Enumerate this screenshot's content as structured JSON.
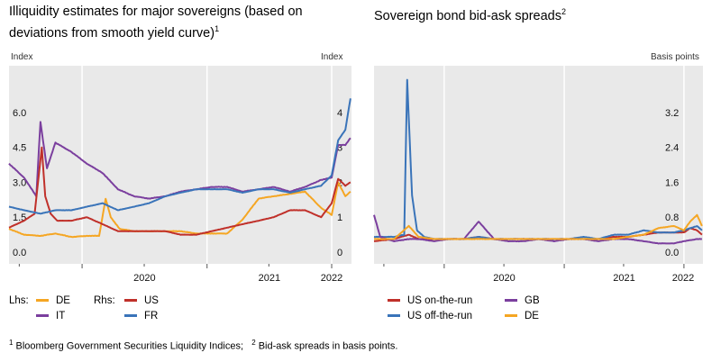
{
  "chart_data": [
    {
      "type": "line",
      "title": "Illiquidity estimates for major sovereigns (based on deviations from smooth yield curve)",
      "title_footnote": "1",
      "left_unit": "Index",
      "right_unit": "Index",
      "ylim_left": [
        0,
        7.5
      ],
      "ylim_right": [
        0,
        5
      ],
      "yticks_left": [
        "0.0",
        "1.5",
        "3.0",
        "4.5",
        "6.0"
      ],
      "yticks_right": [
        "0",
        "1",
        "2",
        "3",
        "4"
      ],
      "xlim": [
        "2019-06-01",
        "2022-02-28"
      ],
      "xticks": [
        {
          "label": "2020",
          "at": "2020-01-01"
        },
        {
          "label": "2021",
          "at": "2021-01-01"
        },
        {
          "label": "2022",
          "at": "2022-01-01"
        }
      ],
      "legend_labels": {
        "lhs": "Lhs:",
        "rhs": "Rhs:"
      },
      "series": [
        {
          "name": "DE",
          "axis": "left",
          "color": "#f5a623",
          "x": [
            "2019-06-01",
            "2019-07-15",
            "2019-09-01",
            "2019-10-15",
            "2019-12-01",
            "2020-01-15",
            "2020-02-20",
            "2020-03-10",
            "2020-03-25",
            "2020-04-20",
            "2020-06-01",
            "2020-07-15",
            "2020-09-01",
            "2020-10-15",
            "2020-12-01",
            "2021-01-15",
            "2021-03-01",
            "2021-04-15",
            "2021-06-01",
            "2021-07-15",
            "2021-09-01",
            "2021-10-15",
            "2021-12-01",
            "2022-01-01",
            "2022-01-20",
            "2022-02-10",
            "2022-02-25"
          ],
          "y": [
            1.0,
            0.75,
            0.7,
            0.8,
            0.65,
            0.7,
            0.7,
            2.3,
            1.5,
            1.0,
            0.9,
            0.9,
            0.9,
            0.9,
            0.8,
            0.8,
            0.8,
            1.4,
            2.3,
            2.4,
            2.5,
            2.6,
            1.9,
            1.6,
            3.0,
            2.4,
            2.6
          ]
        },
        {
          "name": "IT",
          "axis": "left",
          "color": "#7b3f9e",
          "x": [
            "2019-06-01",
            "2019-07-15",
            "2019-08-20",
            "2019-09-01",
            "2019-09-20",
            "2019-10-15",
            "2019-12-01",
            "2020-01-15",
            "2020-03-01",
            "2020-04-15",
            "2020-06-01",
            "2020-07-15",
            "2020-09-01",
            "2020-10-15",
            "2020-12-01",
            "2021-01-15",
            "2021-03-01",
            "2021-04-15",
            "2021-06-01",
            "2021-07-15",
            "2021-09-01",
            "2021-10-15",
            "2021-12-01",
            "2022-01-01",
            "2022-01-20",
            "2022-02-10",
            "2022-02-25"
          ],
          "y": [
            3.8,
            3.2,
            2.4,
            5.6,
            3.6,
            4.7,
            4.3,
            3.8,
            3.4,
            2.7,
            2.4,
            2.3,
            2.4,
            2.6,
            2.7,
            2.8,
            2.8,
            2.6,
            2.7,
            2.8,
            2.6,
            2.8,
            3.1,
            3.2,
            4.6,
            4.6,
            4.9
          ]
        },
        {
          "name": "US",
          "axis": "right",
          "color": "#c0302a",
          "x": [
            "2019-06-01",
            "2019-07-15",
            "2019-08-15",
            "2019-09-05",
            "2019-09-15",
            "2019-10-01",
            "2019-10-20",
            "2019-12-01",
            "2020-01-15",
            "2020-03-01",
            "2020-04-15",
            "2020-06-01",
            "2020-07-15",
            "2020-09-01",
            "2020-10-15",
            "2020-12-01",
            "2021-01-15",
            "2021-03-01",
            "2021-04-15",
            "2021-06-01",
            "2021-07-15",
            "2021-09-01",
            "2021-10-15",
            "2021-12-01",
            "2022-01-01",
            "2022-01-20",
            "2022-02-10",
            "2022-02-25"
          ],
          "y": [
            0.7,
            0.9,
            1.1,
            3.0,
            1.6,
            1.1,
            0.9,
            0.9,
            1.0,
            0.8,
            0.6,
            0.6,
            0.6,
            0.6,
            0.5,
            0.5,
            0.6,
            0.7,
            0.8,
            0.9,
            1.0,
            1.2,
            1.2,
            1.0,
            1.4,
            2.1,
            1.9,
            2.0
          ]
        },
        {
          "name": "FR",
          "axis": "right",
          "color": "#3a74b9",
          "x": [
            "2019-06-01",
            "2019-07-15",
            "2019-09-01",
            "2019-10-15",
            "2019-12-01",
            "2020-01-15",
            "2020-03-01",
            "2020-04-15",
            "2020-06-01",
            "2020-07-15",
            "2020-09-01",
            "2020-10-15",
            "2020-12-01",
            "2021-01-15",
            "2021-03-01",
            "2021-04-15",
            "2021-06-01",
            "2021-07-15",
            "2021-09-01",
            "2021-10-15",
            "2021-12-01",
            "2022-01-01",
            "2022-01-20",
            "2022-02-10",
            "2022-02-25"
          ],
          "y": [
            1.3,
            1.2,
            1.1,
            1.2,
            1.2,
            1.3,
            1.4,
            1.2,
            1.3,
            1.4,
            1.6,
            1.7,
            1.8,
            1.8,
            1.8,
            1.7,
            1.8,
            1.8,
            1.7,
            1.8,
            1.9,
            2.2,
            3.2,
            3.5,
            4.4
          ]
        }
      ]
    },
    {
      "type": "line",
      "title": "Sovereign bond bid-ask spreads",
      "title_footnote": "2",
      "right_unit": "Basis points",
      "ylim_right": [
        0,
        4.0
      ],
      "yticks_right": [
        "0.0",
        "0.8",
        "1.6",
        "2.4",
        "3.2"
      ],
      "xlim": [
        "2019-06-01",
        "2022-02-28"
      ],
      "xticks": [
        {
          "label": "2020",
          "at": "2020-01-01"
        },
        {
          "label": "2021",
          "at": "2021-01-01"
        },
        {
          "label": "2022",
          "at": "2022-01-01"
        }
      ],
      "series": [
        {
          "name": "US on-the-run",
          "axis": "right",
          "color": "#c0302a",
          "x": [
            "2019-06-01",
            "2019-08-01",
            "2019-09-15",
            "2019-10-15",
            "2019-12-01",
            "2020-01-15",
            "2020-03-01",
            "2020-04-15",
            "2020-06-01",
            "2020-07-15",
            "2020-09-01",
            "2020-10-15",
            "2020-12-01",
            "2021-01-15",
            "2021-03-01",
            "2021-04-15",
            "2021-06-01",
            "2021-07-15",
            "2021-09-01",
            "2021-10-15",
            "2021-12-01",
            "2022-01-01",
            "2022-01-20",
            "2022-02-10",
            "2022-02-25"
          ],
          "y": [
            0.25,
            0.3,
            0.4,
            0.3,
            0.3,
            0.3,
            0.3,
            0.35,
            0.3,
            0.3,
            0.3,
            0.3,
            0.3,
            0.3,
            0.3,
            0.3,
            0.35,
            0.35,
            0.4,
            0.45,
            0.45,
            0.45,
            0.55,
            0.5,
            0.4
          ]
        },
        {
          "name": "US off-the-run",
          "axis": "right",
          "color": "#3a74b9",
          "x": [
            "2019-06-01",
            "2019-08-01",
            "2019-09-01",
            "2019-09-10",
            "2019-09-25",
            "2019-10-10",
            "2019-11-01",
            "2019-12-01",
            "2020-01-15",
            "2020-03-01",
            "2020-04-15",
            "2020-06-01",
            "2020-07-15",
            "2020-09-01",
            "2020-10-15",
            "2020-12-01",
            "2021-01-15",
            "2021-03-01",
            "2021-04-15",
            "2021-06-01",
            "2021-07-15",
            "2021-09-01",
            "2021-10-15",
            "2021-12-01",
            "2022-01-01",
            "2022-02-10",
            "2022-02-25"
          ],
          "y": [
            0.35,
            0.35,
            0.4,
            3.95,
            1.3,
            0.5,
            0.35,
            0.3,
            0.3,
            0.3,
            0.35,
            0.3,
            0.3,
            0.3,
            0.3,
            0.3,
            0.3,
            0.35,
            0.3,
            0.4,
            0.4,
            0.5,
            0.45,
            0.45,
            0.5,
            0.6,
            0.5
          ]
        },
        {
          "name": "GB",
          "axis": "right",
          "color": "#7b3f9e",
          "x": [
            "2019-06-01",
            "2019-06-20",
            "2019-08-01",
            "2019-09-15",
            "2019-10-15",
            "2019-12-01",
            "2020-01-15",
            "2020-03-01",
            "2020-04-15",
            "2020-06-01",
            "2020-07-15",
            "2020-09-01",
            "2020-10-15",
            "2020-12-01",
            "2021-01-15",
            "2021-03-01",
            "2021-04-15",
            "2021-06-01",
            "2021-07-15",
            "2021-09-01",
            "2021-10-15",
            "2021-12-01",
            "2022-01-01",
            "2022-02-10",
            "2022-02-25"
          ],
          "y": [
            0.85,
            0.35,
            0.25,
            0.3,
            0.3,
            0.25,
            0.3,
            0.3,
            0.7,
            0.3,
            0.25,
            0.25,
            0.3,
            0.25,
            0.3,
            0.3,
            0.25,
            0.3,
            0.3,
            0.25,
            0.2,
            0.2,
            0.25,
            0.3,
            0.3
          ]
        },
        {
          "name": "DE",
          "axis": "right",
          "color": "#f5a623",
          "x": [
            "2019-06-01",
            "2019-08-01",
            "2019-09-15",
            "2019-10-15",
            "2019-12-01",
            "2020-01-15",
            "2020-03-01",
            "2020-04-15",
            "2020-06-01",
            "2020-07-15",
            "2020-09-01",
            "2020-10-15",
            "2020-12-01",
            "2021-01-15",
            "2021-03-01",
            "2021-04-15",
            "2021-06-01",
            "2021-07-15",
            "2021-09-01",
            "2021-10-15",
            "2021-12-01",
            "2022-01-01",
            "2022-01-20",
            "2022-02-10",
            "2022-02-25"
          ],
          "y": [
            0.3,
            0.3,
            0.6,
            0.35,
            0.3,
            0.3,
            0.3,
            0.3,
            0.3,
            0.3,
            0.3,
            0.3,
            0.3,
            0.3,
            0.3,
            0.3,
            0.3,
            0.35,
            0.4,
            0.55,
            0.6,
            0.5,
            0.7,
            0.85,
            0.6
          ]
        }
      ]
    }
  ],
  "footnotes": [
    {
      "mark": "1",
      "text": "Bloomberg Government Securities Liquidity Indices;"
    },
    {
      "mark": "2",
      "text": "Bid-ask spreads in basis points."
    }
  ]
}
